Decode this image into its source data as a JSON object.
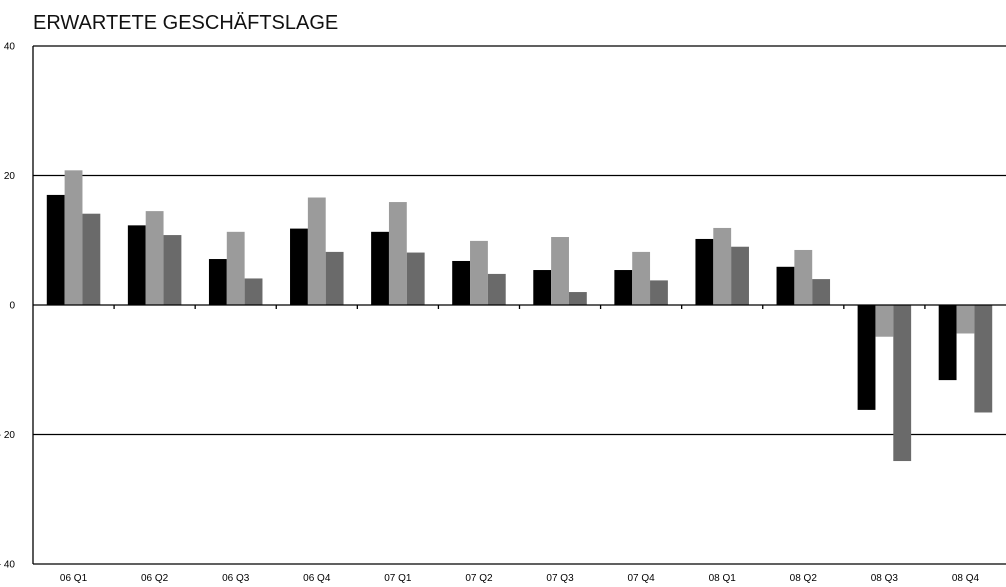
{
  "chart_data": {
    "type": "bar",
    "title": "ERWARTETE GESCHÄFTSLAGE",
    "xlabel": "",
    "ylabel": "",
    "categories": [
      "06 Q1",
      "06 Q2",
      "06 Q3",
      "06 Q4",
      "07 Q1",
      "07 Q2",
      "07 Q3",
      "07 Q4",
      "08 Q1",
      "08 Q2",
      "08 Q3",
      "08 Q4"
    ],
    "y_tick_labels": [
      "40",
      "20",
      "0",
      "- 20",
      "- 40"
    ],
    "ylim": [
      -40,
      40
    ],
    "grid": true,
    "legend": "none",
    "series": [
      {
        "color": "#000000",
        "values": [
          17.0,
          12.3,
          7.1,
          11.8,
          11.3,
          6.8,
          5.4,
          5.4,
          10.2,
          5.9,
          -16.2,
          -11.6
        ]
      },
      {
        "color": "#9b9b9b",
        "values": [
          20.8,
          14.5,
          11.3,
          16.6,
          15.9,
          9.9,
          10.5,
          8.2,
          11.9,
          8.5,
          -4.9,
          -4.4
        ]
      },
      {
        "color": "#6a6a6a",
        "values": [
          14.1,
          10.8,
          4.1,
          8.2,
          8.1,
          4.8,
          2.0,
          3.8,
          9.0,
          4.0,
          -24.1,
          -16.6
        ]
      }
    ]
  }
}
